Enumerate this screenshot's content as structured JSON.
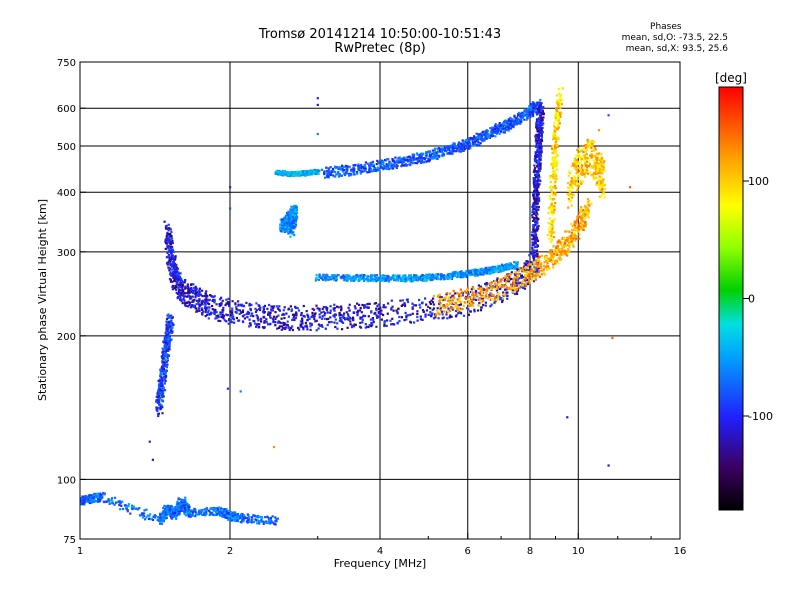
{
  "title": {
    "line1": "Tromsø 20141214 10:50:00-10:51:43",
    "line2": "RwPretec (8p)"
  },
  "phases": {
    "header": "Phases",
    "o_line": "mean, sd,O: -73.5, 22.5",
    "x_line": "mean, sd,X:  93.5, 25.6"
  },
  "colorbar": {
    "label": "[deg]",
    "ticks": [
      "100",
      "0",
      "-100"
    ],
    "tick_values": [
      100,
      0,
      -100
    ],
    "range": [
      -180,
      180
    ]
  },
  "chart_data": {
    "type": "scatter",
    "xlabel": "Frequency [MHz]",
    "ylabel": "Stationary phase Virtual Height [km]",
    "x_scale": "log",
    "y_scale": "log",
    "xlim": [
      1,
      16
    ],
    "ylim": [
      75,
      750
    ],
    "x_ticks": [
      1,
      2,
      4,
      6,
      8,
      10,
      16
    ],
    "x_tick_labels": [
      "1",
      "2",
      "4",
      "6",
      "8",
      "10",
      "16"
    ],
    "y_ticks": [
      75,
      100,
      200,
      300,
      400,
      500,
      600,
      750
    ],
    "y_tick_labels": [
      "75",
      "100",
      "200",
      "300",
      "400",
      "500",
      "600",
      "750"
    ],
    "grid": true,
    "color_encoding": "phase [deg]",
    "traces": [
      {
        "x": [
          1.5,
          1.52,
          1.55,
          1.6,
          1.7,
          1.8,
          2.0,
          2.3,
          2.6,
          3.0,
          3.5,
          4.0,
          5.0,
          6.0,
          7.0,
          7.8,
          8.3
        ],
        "y": [
          330,
          290,
          265,
          250,
          240,
          232,
          225,
          220,
          218,
          218,
          220,
          222,
          228,
          235,
          250,
          265,
          290
        ],
        "phase": -110,
        "spread_y": 0.06
      },
      {
        "x": [
          3.1,
          3.5,
          4.0,
          4.5,
          5.0,
          5.5,
          6.0,
          6.5,
          7.0,
          7.5,
          8.0,
          8.3
        ],
        "y": [
          440,
          445,
          455,
          465,
          475,
          490,
          505,
          525,
          545,
          565,
          590,
          610
        ],
        "phase": -80,
        "spread_y": 0.025
      },
      {
        "x": [
          3.0,
          3.5,
          4.0,
          4.5,
          5.0,
          5.5,
          6.0,
          6.5,
          7.0,
          7.5
        ],
        "y": [
          265,
          265,
          264,
          264,
          265,
          267,
          270,
          273,
          277,
          282
        ],
        "phase": -55,
        "spread_y": 0.015
      },
      {
        "x": [
          5.2,
          6.0,
          7.0,
          8.0,
          8.8,
          9.4,
          10.0,
          10.5
        ],
        "y": [
          232,
          240,
          252,
          270,
          290,
          310,
          340,
          370
        ],
        "phase": 115,
        "spread_y": 0.05
      },
      {
        "x": [
          8.2,
          8.2,
          8.25,
          8.3,
          8.35,
          8.4
        ],
        "y": [
          300,
          360,
          420,
          480,
          540,
          600
        ],
        "phase": -110,
        "spread_y": 0.04
      },
      {
        "x": [
          8.8,
          8.9,
          9.0,
          9.2
        ],
        "y": [
          320,
          420,
          520,
          640
        ],
        "phase": 95,
        "spread_y": 0.04
      },
      {
        "x": [
          1.44,
          1.46,
          1.48,
          1.5,
          1.52
        ],
        "y": [
          140,
          160,
          180,
          200,
          215
        ],
        "phase": -90,
        "spread_y": 0.04
      },
      {
        "x": [
          1.0,
          1.05,
          1.1,
          1.45,
          1.5,
          1.55,
          1.6,
          1.65,
          1.9,
          2.0,
          2.1,
          2.5
        ],
        "y": [
          90,
          91,
          92,
          82,
          87,
          84,
          90,
          85,
          86,
          84,
          83,
          82
        ],
        "phase": -70,
        "spread_y": 0.02
      },
      {
        "x": [
          2.5,
          2.6,
          2.7,
          2.8,
          2.9,
          3.0
        ],
        "y": [
          440,
          437,
          437,
          438,
          440,
          442
        ],
        "phase": -40,
        "spread_y": 0.01
      },
      {
        "x": [
          2.55,
          2.6,
          2.65,
          2.7,
          2.65
        ],
        "y": [
          340,
          345,
          355,
          365,
          330
        ],
        "phase": -60,
        "spread_y": 0.03
      },
      {
        "x": [
          9.6,
          10.0,
          10.5,
          11.0,
          11.2
        ],
        "y": [
          400,
          450,
          480,
          450,
          420
        ],
        "phase": 100,
        "spread_y": 0.08
      }
    ],
    "isolated_points": [
      {
        "x": 3.0,
        "y": 630,
        "phase": -100
      },
      {
        "x": 3.0,
        "y": 610,
        "phase": -110
      },
      {
        "x": 3.0,
        "y": 530,
        "phase": -60
      },
      {
        "x": 2.0,
        "y": 410,
        "phase": -100
      },
      {
        "x": 2.0,
        "y": 370,
        "phase": -80
      },
      {
        "x": 1.38,
        "y": 120,
        "phase": -100
      },
      {
        "x": 1.4,
        "y": 110,
        "phase": -110
      },
      {
        "x": 1.98,
        "y": 155,
        "phase": -90
      },
      {
        "x": 2.1,
        "y": 153,
        "phase": -60
      },
      {
        "x": 2.45,
        "y": 117,
        "phase": 120
      },
      {
        "x": 9.5,
        "y": 135,
        "phase": -110
      },
      {
        "x": 11.5,
        "y": 107,
        "phase": -110
      },
      {
        "x": 11.7,
        "y": 198,
        "phase": 140
      },
      {
        "x": 12.7,
        "y": 410,
        "phase": 140
      },
      {
        "x": 11.5,
        "y": 580,
        "phase": -80
      },
      {
        "x": 11.0,
        "y": 540,
        "phase": 120
      }
    ]
  }
}
